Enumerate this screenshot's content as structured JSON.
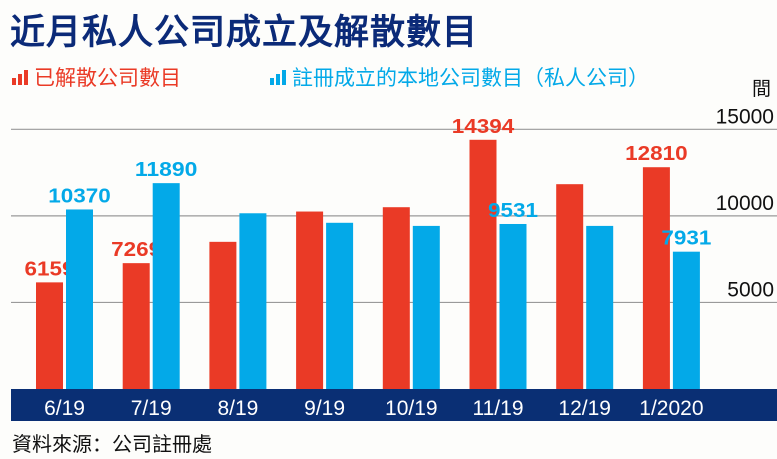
{
  "title": "近月私人公司成立及解散數目",
  "unit_label": "間",
  "source": "資料來源：公司註冊處",
  "colors": {
    "dissolved": "#ea3a26",
    "registered": "#03a9e8",
    "band": "#0a2f74"
  },
  "chart_data": {
    "type": "bar",
    "title": "近月私人公司成立及解散數目",
    "categories": [
      "6/19",
      "7/19",
      "8/19",
      "9/19",
      "10/19",
      "11/19",
      "12/19",
      "1/2020"
    ],
    "series": [
      {
        "name": "已解散公司數目",
        "values": [
          6159,
          7269,
          8500,
          10250,
          10500,
          14394,
          11830,
          12810
        ],
        "labels": [
          "6159",
          "7269",
          "",
          "",
          "",
          "14394",
          "",
          "12810"
        ]
      },
      {
        "name": "註冊成立的本地公司數目（私人公司）",
        "values": [
          10370,
          11890,
          10150,
          9600,
          9420,
          9531,
          9420,
          7931
        ],
        "labels": [
          "10370",
          "11890",
          "",
          "",
          "",
          "9531",
          "",
          "7931"
        ]
      }
    ],
    "yticks": [
      "5000",
      "10000",
      "15000"
    ],
    "ylim": [
      0,
      15000
    ],
    "ylabel": "間",
    "grid": true,
    "legend": "top"
  }
}
